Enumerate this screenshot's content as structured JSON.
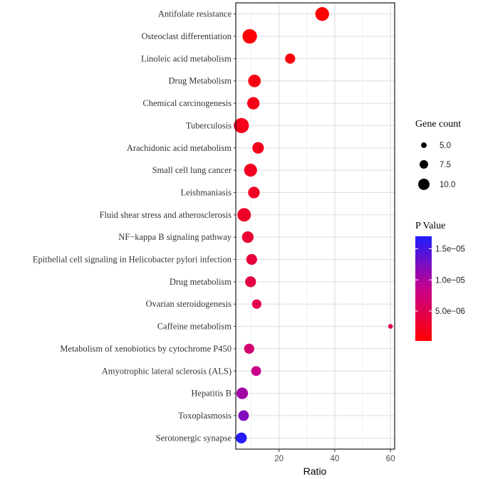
{
  "chart_data": {
    "type": "scatter",
    "title": "",
    "xlabel": "Ratio",
    "ylabel": "",
    "xlim": [
      4.5,
      61.5
    ],
    "x_ticks": [
      20,
      40,
      60
    ],
    "grid": true,
    "size_legend": {
      "title": "Gene count",
      "values": [
        5.0,
        7.5,
        10.0
      ],
      "labels": [
        "5.0",
        "7.5",
        "10.0"
      ]
    },
    "color_legend": {
      "title": "P Value",
      "ticks": [
        1.5e-05,
        1e-05,
        5e-06
      ],
      "labels": [
        "1.5e−05",
        "1.0e−05",
        "5.0e−06"
      ],
      "range": [
        2e-07,
        1.7e-05
      ],
      "low_color": "#ff0000",
      "high_color": "#0000ff"
    },
    "points": [
      {
        "term": "Antifolate resistance",
        "ratio": 35.5,
        "count": 9.5,
        "pvalue": 4e-07
      },
      {
        "term": "Osteoclast differentiation",
        "ratio": 9.5,
        "count": 10.0,
        "pvalue": 7e-07
      },
      {
        "term": "Linoleic acid metabolism",
        "ratio": 24.0,
        "count": 7.0,
        "pvalue": 1e-06
      },
      {
        "term": "Drug Metabolism",
        "ratio": 11.2,
        "count": 8.7,
        "pvalue": 1.3e-06
      },
      {
        "term": "Chemical carcinogenesis",
        "ratio": 10.8,
        "count": 8.5,
        "pvalue": 1.5e-06
      },
      {
        "term": "Tuberculosis",
        "ratio": 6.5,
        "count": 10.4,
        "pvalue": 1.7e-06
      },
      {
        "term": "Arachidonic acid metabolism",
        "ratio": 12.5,
        "count": 8.0,
        "pvalue": 1.9e-06
      },
      {
        "term": "Small cell lung cancer",
        "ratio": 9.8,
        "count": 8.9,
        "pvalue": 2.1e-06
      },
      {
        "term": "Leishmaniasis",
        "ratio": 11.0,
        "count": 8.0,
        "pvalue": 2.4e-06
      },
      {
        "term": "Fluid shear stress and atherosclerosis",
        "ratio": 7.5,
        "count": 9.3,
        "pvalue": 2.6e-06
      },
      {
        "term": "NF−kappa B signaling pathway",
        "ratio": 8.8,
        "count": 8.0,
        "pvalue": 3.3e-06
      },
      {
        "term": "Epithelial cell signaling in Helicobacter pylori infection",
        "ratio": 10.2,
        "count": 7.5,
        "pvalue": 3.8e-06
      },
      {
        "term": "Drug metabolism",
        "ratio": 9.8,
        "count": 7.5,
        "pvalue": 4.3e-06
      },
      {
        "term": "Ovarian steroidogenesis",
        "ratio": 12.0,
        "count": 6.5,
        "pvalue": 5e-06
      },
      {
        "term": "Caffeine metabolism",
        "ratio": 60.0,
        "count": 3.3,
        "pvalue": 5.2e-06
      },
      {
        "term": "Metabolism of xenobiotics by cytochrome P450",
        "ratio": 9.3,
        "count": 7.0,
        "pvalue": 7e-06
      },
      {
        "term": "Amyotrophic lateral sclerosis (ALS)",
        "ratio": 11.8,
        "count": 6.8,
        "pvalue": 8.5e-06
      },
      {
        "term": "Hepatitis B",
        "ratio": 6.8,
        "count": 8.0,
        "pvalue": 1.05e-05
      },
      {
        "term": "Toxoplasmosis",
        "ratio": 7.3,
        "count": 7.3,
        "pvalue": 1.2e-05
      },
      {
        "term": "Serotonergic synapse",
        "ratio": 6.5,
        "count": 7.5,
        "pvalue": 1.65e-05
      }
    ]
  }
}
